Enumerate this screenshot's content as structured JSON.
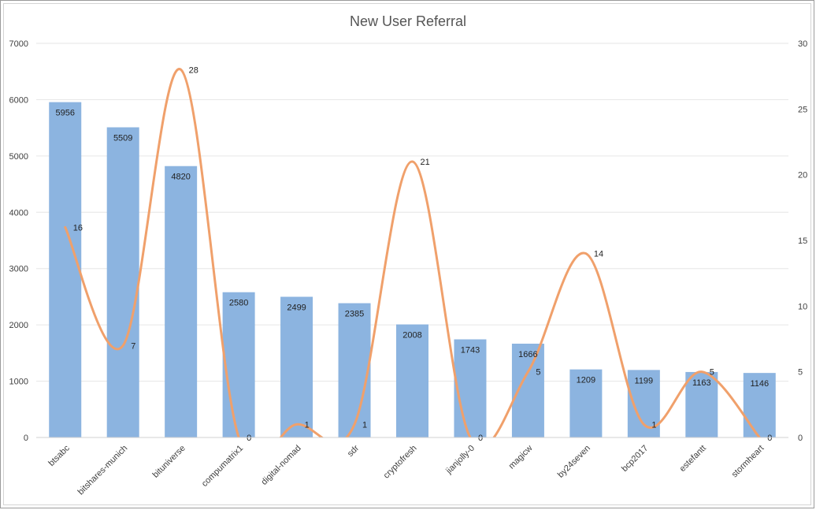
{
  "chart_data": {
    "type": "bar",
    "title": "New User Referral",
    "categories": [
      "btsabc",
      "bitshares-munich",
      "bituniverse",
      "compumatrix1",
      "digital-nomad",
      "sdr",
      "cryptofresh",
      "jianjolly-0",
      "magicw",
      "by24seven",
      "bcp2017",
      "estefantt",
      "stormheart"
    ],
    "series": [
      {
        "type": "bar",
        "axis": "left",
        "values": [
          5956,
          5509,
          4820,
          2580,
          2499,
          2385,
          2008,
          1743,
          1666,
          1209,
          1199,
          1163,
          1146
        ]
      },
      {
        "type": "line",
        "axis": "right",
        "smooth": true,
        "values": [
          16,
          7,
          28,
          0,
          1,
          1,
          21,
          0,
          5,
          14,
          1,
          5,
          0
        ]
      }
    ],
    "y_left": {
      "min": 0,
      "max": 7000,
      "ticks": [
        "0",
        "1000",
        "2000",
        "3000",
        "4000",
        "5000",
        "6000",
        "7000"
      ]
    },
    "y_right": {
      "min": 0,
      "max": 30,
      "ticks": [
        "0",
        "5",
        "10",
        "15",
        "20",
        "25",
        "30"
      ]
    },
    "grid": true,
    "colors": {
      "bar": "#8cb4e0",
      "line": "#f0a06b",
      "grid": "#e6e6e6"
    }
  }
}
